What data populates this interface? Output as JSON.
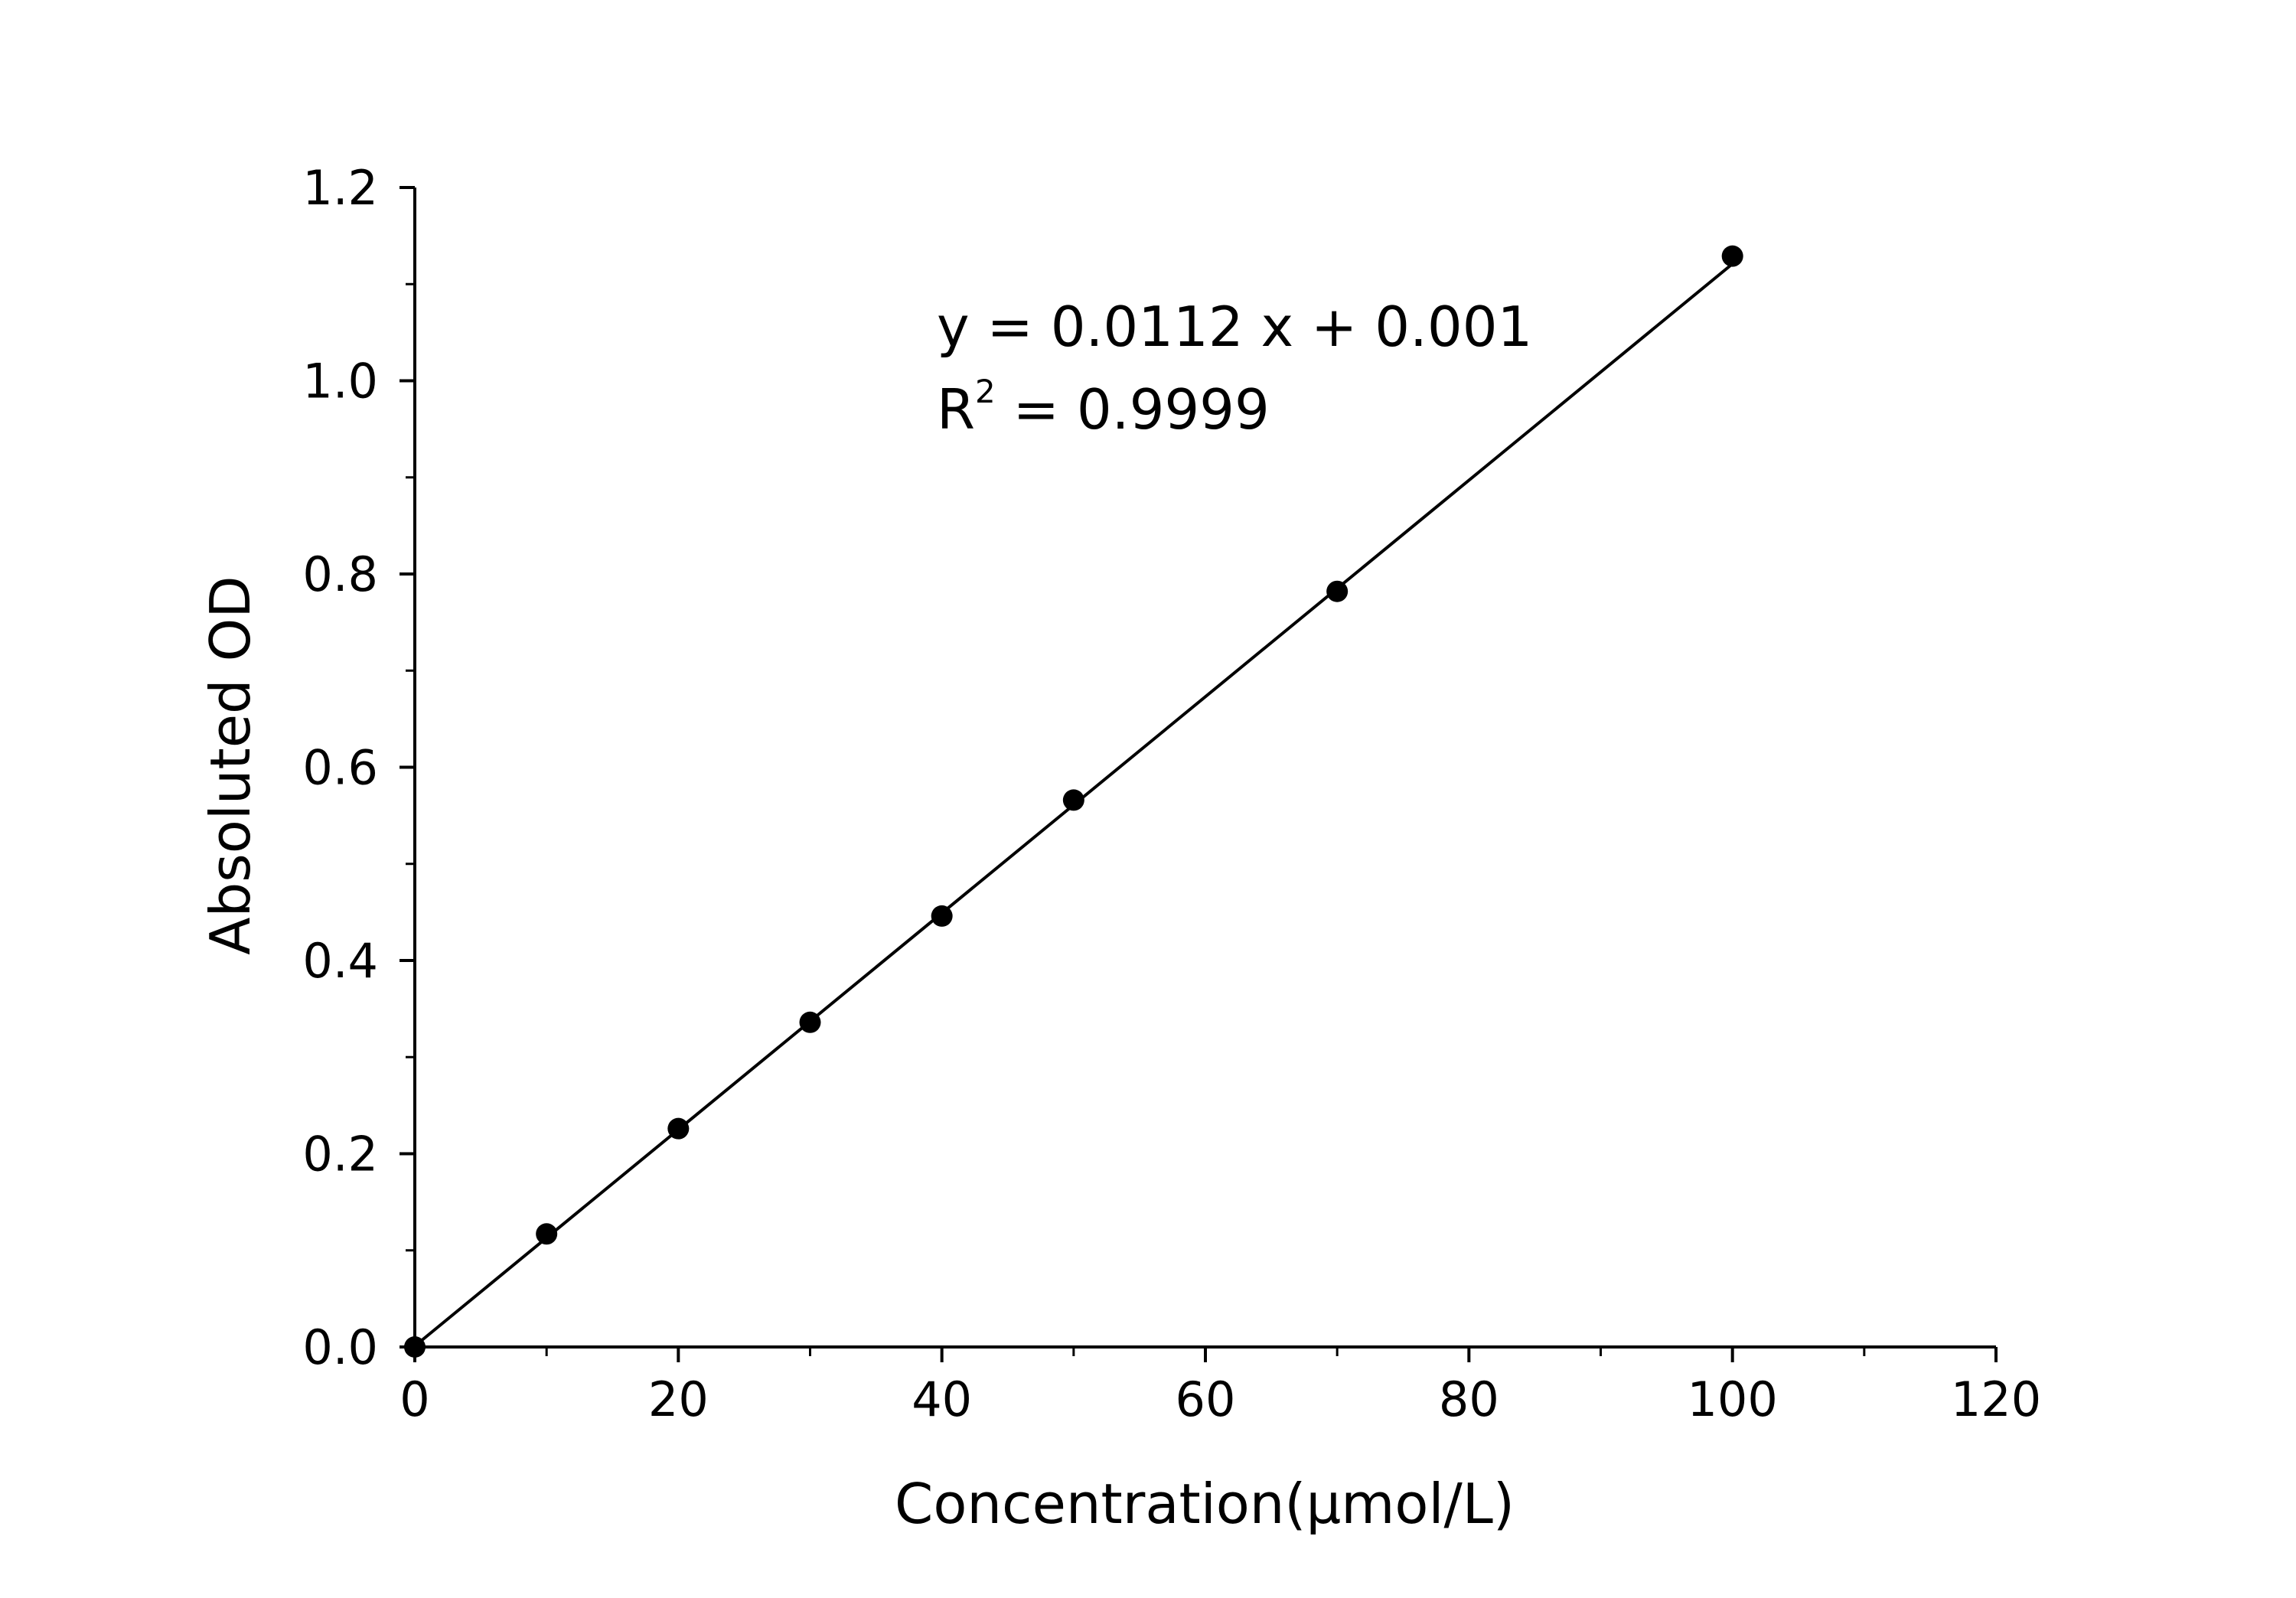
{
  "chart_data": {
    "type": "scatter",
    "xlabel": "Concentration(μmol/L)",
    "ylabel": "Absoluted OD",
    "xlim": [
      0,
      120
    ],
    "ylim": [
      0,
      1.2
    ],
    "x_ticks": [
      "0",
      "20",
      "40",
      "60",
      "80",
      "100",
      "120"
    ],
    "y_ticks": [
      "0.0",
      "0.2",
      "0.4",
      "0.6",
      "0.8",
      "1.0",
      "1.2"
    ],
    "grid": false,
    "series": [
      {
        "marker": "filled-circle",
        "color": "#000000",
        "x": [
          0,
          10,
          20,
          30,
          40,
          50,
          70,
          100
        ],
        "y": [
          0.0,
          0.117,
          0.226,
          0.336,
          0.446,
          0.566,
          0.782,
          1.129
        ]
      }
    ],
    "fit": {
      "type": "linear",
      "slope": 0.0112,
      "intercept": 0.001,
      "x_range": [
        0,
        100
      ],
      "color": "#000000"
    },
    "annotations": {
      "equation": "y = 0.0112 x + 0.001",
      "r2_base": "R",
      "r2_exp": "2",
      "r2_value": " = 0.9999"
    }
  }
}
